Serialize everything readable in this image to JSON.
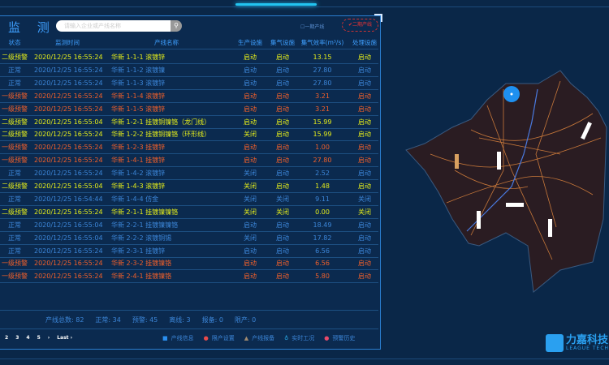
{
  "header": {
    "title": "监 测",
    "search_placeholder": "请输入企业或产线名称",
    "search_icon": "search-icon"
  },
  "filters": {
    "phase1": "一期产线",
    "phase1_checked": false,
    "phase2": "二期产线",
    "phase2_checked": true
  },
  "columns": [
    "状态",
    "监测时间",
    "产线名称",
    "生产设施",
    "集气设施",
    "集气效率(m³/s)",
    "处理设施"
  ],
  "rows": [
    {
      "level": "warn2",
      "status": "二级预警",
      "time": "2020/12/25 16:55:24",
      "name": "华新 1-1-1 滚镀锌",
      "prod": "启动",
      "gas": "启动",
      "eff": "13.15",
      "treat": "启动"
    },
    {
      "level": "normal",
      "status": "正常",
      "time": "2020/12/25 16:55:24",
      "name": "华新 1-1-2 滚镀镍",
      "prod": "启动",
      "gas": "启动",
      "eff": "27.80",
      "treat": "启动"
    },
    {
      "level": "normal",
      "status": "正常",
      "time": "2020/12/25 16:55:24",
      "name": "华新 1-1-3 滚镀锌",
      "prod": "启动",
      "gas": "启动",
      "eff": "27.80",
      "treat": "启动"
    },
    {
      "level": "warn1",
      "status": "一级预警",
      "time": "2020/12/25 16:55:24",
      "name": "华新 1-1-4 滚镀锌",
      "prod": "启动",
      "gas": "启动",
      "eff": "3.21",
      "treat": "启动"
    },
    {
      "level": "warn1",
      "status": "一级预警",
      "time": "2020/12/25 16:55:24",
      "name": "华新 1-1-5 滚镀锌",
      "prod": "启动",
      "gas": "启动",
      "eff": "3.21",
      "treat": "启动"
    },
    {
      "level": "warn2",
      "status": "二级预警",
      "time": "2020/12/25 16:55:04",
      "name": "华新 1-2-1 挂镀铜镍铬（龙门线）",
      "prod": "启动",
      "gas": "启动",
      "eff": "15.99",
      "treat": "启动"
    },
    {
      "level": "warn2",
      "status": "二级预警",
      "time": "2020/12/25 16:55:24",
      "name": "华新 1-2-2 挂镀铜镍铬（环形线）",
      "prod": "关闭",
      "gas": "启动",
      "eff": "15.99",
      "treat": "启动"
    },
    {
      "level": "warn1",
      "status": "一级预警",
      "time": "2020/12/25 16:55:24",
      "name": "华新 1-2-3 挂镀锌",
      "prod": "启动",
      "gas": "启动",
      "eff": "1.00",
      "treat": "启动"
    },
    {
      "level": "warn1",
      "status": "一级预警",
      "time": "2020/12/25 16:55:24",
      "name": "华新 1-4-1 挂镀锌",
      "prod": "启动",
      "gas": "启动",
      "eff": "27.80",
      "treat": "启动"
    },
    {
      "level": "normal",
      "status": "正常",
      "time": "2020/12/25 16:55:24",
      "name": "华新 1-4-2 滚镀锌",
      "prod": "关闭",
      "gas": "启动",
      "eff": "2.52",
      "treat": "启动"
    },
    {
      "level": "warn2",
      "status": "二级预警",
      "time": "2020/12/25 16:55:04",
      "name": "华新 1-4-3 滚镀锌",
      "prod": "关闭",
      "gas": "启动",
      "eff": "1.48",
      "treat": "启动"
    },
    {
      "level": "normal",
      "status": "正常",
      "time": "2020/12/25 16:54:44",
      "name": "华新 1-4-4 仿金",
      "prod": "关闭",
      "gas": "关闭",
      "eff": "9.11",
      "treat": "关闭"
    },
    {
      "level": "warn2",
      "status": "二级预警",
      "time": "2020/12/25 16:55:24",
      "name": "华新 2-1-1 挂镀镍镍铬",
      "prod": "关闭",
      "gas": "关闭",
      "eff": "0.00",
      "treat": "关闭"
    },
    {
      "level": "normal",
      "status": "正常",
      "time": "2020/12/25 16:55:04",
      "name": "华新 2-2-1 挂镀镍镍铬",
      "prod": "启动",
      "gas": "启动",
      "eff": "18.49",
      "treat": "启动"
    },
    {
      "level": "normal",
      "status": "正常",
      "time": "2020/12/25 16:55:04",
      "name": "华新 2-2-2 滚镀铜锡",
      "prod": "关闭",
      "gas": "启动",
      "eff": "17.82",
      "treat": "启动"
    },
    {
      "level": "normal",
      "status": "正常",
      "time": "2020/12/25 16:55:24",
      "name": "华新 2-3-1 挂镀锌",
      "prod": "启动",
      "gas": "启动",
      "eff": "6.56",
      "treat": "启动"
    },
    {
      "level": "warn1",
      "status": "一级预警",
      "time": "2020/12/25 16:55:24",
      "name": "华新 2-3-2 挂镀镍铬",
      "prod": "启动",
      "gas": "启动",
      "eff": "6.56",
      "treat": "启动"
    },
    {
      "level": "warn1",
      "status": "一级预警",
      "time": "2020/12/25 16:55:24",
      "name": "华新 2-4-1 挂镀镍铬",
      "prod": "启动",
      "gas": "启动",
      "eff": "5.80",
      "treat": "启动"
    }
  ],
  "summary": [
    "产线总数: 82",
    "正常: 34",
    "预警: 45",
    "离线: 3",
    "报备: 0",
    "限产: 0"
  ],
  "pagination": [
    "2",
    "3",
    "4",
    "5",
    "›",
    "Last ›"
  ],
  "links": [
    {
      "icon": "info-icon",
      "label": "产线信息",
      "color": "#2a8ff0"
    },
    {
      "icon": "limit-icon",
      "label": "限产设置",
      "color": "#e84a4a"
    },
    {
      "icon": "warning-icon",
      "label": "产线报备",
      "color": "#a08a70"
    },
    {
      "icon": "gauge-icon",
      "label": "实时工况",
      "color": "#2ab0f0"
    },
    {
      "icon": "history-icon",
      "label": "预警历史",
      "color": "#e84a6a"
    }
  ],
  "colors": {
    "warn2": "#e6ee1a",
    "warn1": "#f2602a",
    "normal": "#3c86d8",
    "background": "#0a2748"
  },
  "logo": {
    "name": "力嘉科技",
    "subtitle": "LEAGUE TECH"
  }
}
